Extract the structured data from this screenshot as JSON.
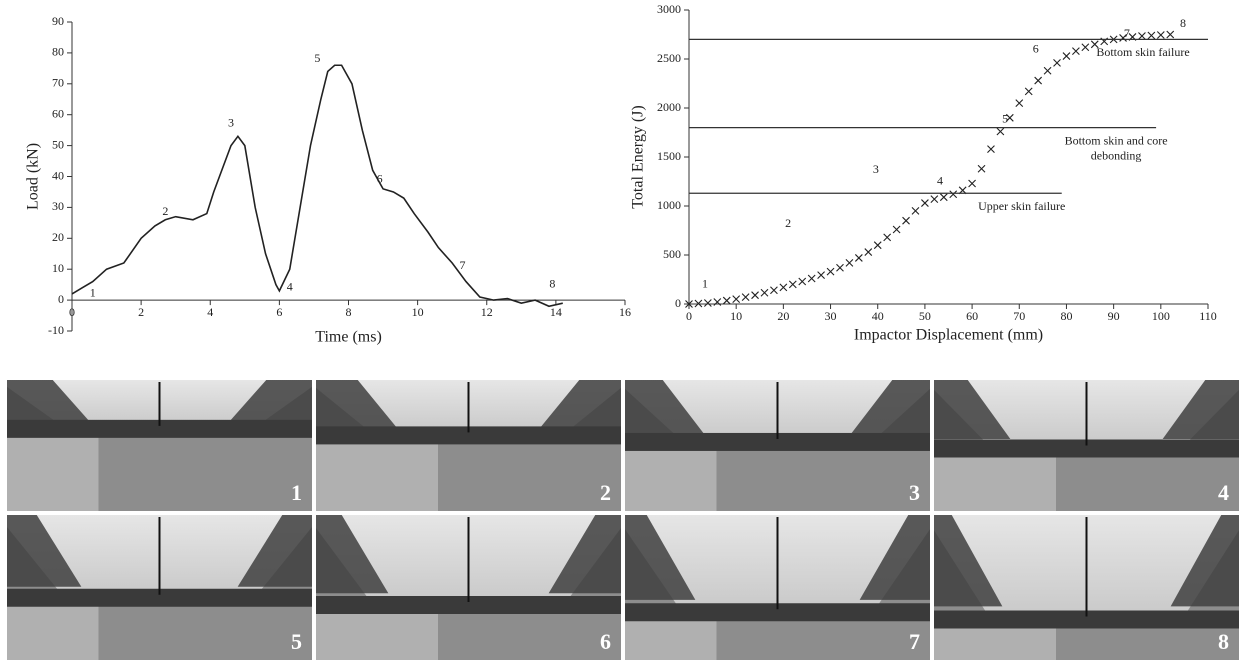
{
  "chart_data": [
    {
      "type": "line",
      "xlabel": "Time (ms)",
      "ylabel": "Load (kN)",
      "color": "#222222",
      "x": [
        0,
        0.3,
        0.6,
        1,
        1.5,
        2,
        2.4,
        2.7,
        3,
        3.5,
        3.9,
        4.1,
        4.4,
        4.6,
        4.8,
        5,
        5.3,
        5.6,
        5.9,
        6,
        6.3,
        6.6,
        6.9,
        7.2,
        7.4,
        7.6,
        7.8,
        8.1,
        8.4,
        8.7,
        9,
        9.3,
        9.6,
        9.9,
        10.3,
        10.6,
        11,
        11.4,
        11.8,
        12.2,
        12.6,
        13,
        13.4,
        13.8,
        14.2
      ],
      "values": [
        2,
        4,
        6,
        10,
        12,
        20,
        24,
        26,
        27,
        26,
        28,
        35,
        44,
        50,
        53,
        50,
        30,
        15,
        5,
        3,
        10,
        30,
        50,
        65,
        74,
        76,
        76,
        70,
        55,
        42,
        36,
        35,
        33,
        28,
        22,
        17,
        12,
        6,
        1,
        0,
        0.5,
        -1,
        0,
        -2,
        -1
      ],
      "xlim": [
        0,
        16
      ],
      "xticks": [
        0,
        2,
        4,
        6,
        8,
        10,
        12,
        14,
        16
      ],
      "ylim": [
        -10,
        90
      ],
      "yticks": [
        -10,
        0,
        10,
        20,
        30,
        40,
        50,
        60,
        70,
        80,
        90
      ],
      "annotations": [
        {
          "text": "1",
          "x": 0.6,
          "y": 2
        },
        {
          "text": "2",
          "x": 2.7,
          "y": 28.5
        },
        {
          "text": "3",
          "x": 4.6,
          "y": 57
        },
        {
          "text": "4",
          "x": 6.3,
          "y": 4
        },
        {
          "text": "5",
          "x": 7.1,
          "y": 78
        },
        {
          "text": "6",
          "x": 8.9,
          "y": 39
        },
        {
          "text": "7",
          "x": 11.3,
          "y": 11
        },
        {
          "text": "8",
          "x": 13.9,
          "y": 5
        }
      ]
    },
    {
      "type": "scatter",
      "xlabel": "Impactor Displacement (mm)",
      "ylabel": "Total Energy (J)",
      "color": "#222222",
      "marker": "x",
      "x": [
        0,
        2,
        4,
        6,
        8,
        10,
        12,
        14,
        16,
        18,
        20,
        22,
        24,
        26,
        28,
        30,
        32,
        34,
        36,
        38,
        40,
        42,
        44,
        46,
        48,
        50,
        52,
        54,
        56,
        58,
        60,
        62,
        64,
        66,
        68,
        70,
        72,
        74,
        76,
        78,
        80,
        82,
        84,
        86,
        88,
        90,
        92,
        94,
        96,
        98,
        100,
        102
      ],
      "values": [
        0,
        5,
        10,
        20,
        35,
        50,
        70,
        90,
        115,
        140,
        170,
        200,
        230,
        260,
        295,
        330,
        370,
        420,
        470,
        530,
        600,
        680,
        760,
        850,
        950,
        1030,
        1070,
        1090,
        1120,
        1160,
        1230,
        1380,
        1580,
        1760,
        1900,
        2050,
        2170,
        2280,
        2380,
        2460,
        2530,
        2580,
        2620,
        2650,
        2680,
        2700,
        2715,
        2725,
        2735,
        2740,
        2745,
        2750
      ],
      "xlim": [
        0,
        110
      ],
      "xticks": [
        0,
        10,
        20,
        30,
        40,
        50,
        60,
        70,
        80,
        90,
        100,
        110
      ],
      "ylim": [
        0,
        3000
      ],
      "yticks": [
        0,
        500,
        1000,
        1500,
        2000,
        2500,
        3000
      ],
      "hlines": [
        {
          "y": 2700,
          "x_end": 110,
          "label": [
            "Bottom skin failure"
          ]
        },
        {
          "y": 1800,
          "x_end": 99,
          "label": [
            "Bottom skin and core",
            "debonding"
          ]
        },
        {
          "y": 1130,
          "x_end": 79,
          "label": [
            "Upper skin failure"
          ]
        }
      ],
      "annotations": [
        {
          "text": "1",
          "x": 3.4,
          "y": 194
        },
        {
          "text": "2",
          "x": 21,
          "y": 816
        },
        {
          "text": "3",
          "x": 39.6,
          "y": 1367
        },
        {
          "text": "4",
          "x": 53.2,
          "y": 1245
        },
        {
          "text": "5",
          "x": 67,
          "y": 1878
        },
        {
          "text": "6",
          "x": 73.5,
          "y": 2592
        },
        {
          "text": "7",
          "x": 92.8,
          "y": 2755
        },
        {
          "text": "8",
          "x": 104.7,
          "y": 2857
        }
      ]
    }
  ],
  "photo_labels": [
    "1",
    "2",
    "3",
    "4",
    "5",
    "6",
    "7",
    "8"
  ]
}
